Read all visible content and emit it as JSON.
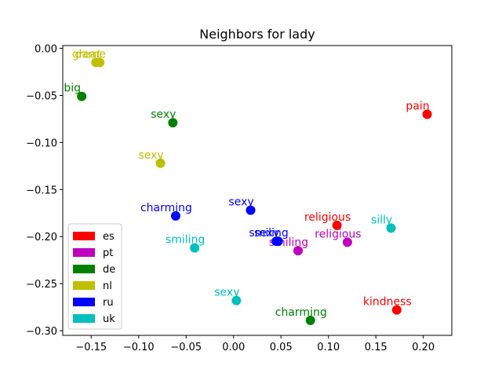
{
  "chart_data": {
    "type": "scatter",
    "title": "Neighbors for lady",
    "xlabel": "",
    "ylabel": "",
    "xlim": [
      -0.18,
      0.23
    ],
    "ylim": [
      -0.305,
      0.003
    ],
    "xticks": [
      -0.15,
      -0.1,
      -0.05,
      0.0,
      0.05,
      0.1,
      0.15,
      0.2
    ],
    "xtick_labels": [
      "−0.15",
      "−0.10",
      "−0.05",
      "0.00",
      "0.05",
      "0.10",
      "0.15",
      "0.20"
    ],
    "yticks": [
      0.0,
      -0.05,
      -0.1,
      -0.15,
      -0.2,
      -0.25,
      -0.3
    ],
    "ytick_labels": [
      "0.00",
      "−0.05",
      "−0.10",
      "−0.15",
      "−0.20",
      "−0.25",
      "−0.30"
    ],
    "grid": false,
    "legend_position": "lower-left",
    "series": [
      {
        "name": "es",
        "color": "#ff0000",
        "points": [
          {
            "label": "pain",
            "x": 0.204,
            "y": -0.07
          },
          {
            "label": "religious",
            "x": 0.109,
            "y": -0.188
          },
          {
            "label": "kindness",
            "x": 0.172,
            "y": -0.278
          }
        ]
      },
      {
        "name": "pt",
        "color": "#bf00bf",
        "points": [
          {
            "label": "religious",
            "x": 0.12,
            "y": -0.206
          },
          {
            "label": "smiling",
            "x": 0.068,
            "y": -0.215
          }
        ]
      },
      {
        "name": "de",
        "color": "#008000",
        "points": [
          {
            "label": "big",
            "x": -0.16,
            "y": -0.051
          },
          {
            "label": "sexy",
            "x": -0.064,
            "y": -0.079
          },
          {
            "label": "charming",
            "x": 0.081,
            "y": -0.289
          }
        ]
      },
      {
        "name": "nl",
        "color": "#bfbf00",
        "points": [
          {
            "label": "great",
            "x": -0.145,
            "y": -0.015
          },
          {
            "label": "dame",
            "x": -0.141,
            "y": -0.015
          },
          {
            "label": "sexy",
            "x": -0.077,
            "y": -0.122
          }
        ]
      },
      {
        "name": "ru",
        "color": "#0000ff",
        "points": [
          {
            "label": "charming",
            "x": -0.061,
            "y": -0.178
          },
          {
            "label": "sexy",
            "x": 0.018,
            "y": -0.172
          },
          {
            "label": "smiling",
            "x": 0.047,
            "y": -0.205
          },
          {
            "label": "sexy",
            "x": 0.045,
            "y": -0.205
          }
        ]
      },
      {
        "name": "uk",
        "color": "#00bfbf",
        "points": [
          {
            "label": "smiling",
            "x": -0.041,
            "y": -0.212
          },
          {
            "label": "sexy",
            "x": 0.003,
            "y": -0.268
          },
          {
            "label": "silly",
            "x": 0.166,
            "y": -0.191
          }
        ]
      }
    ]
  }
}
